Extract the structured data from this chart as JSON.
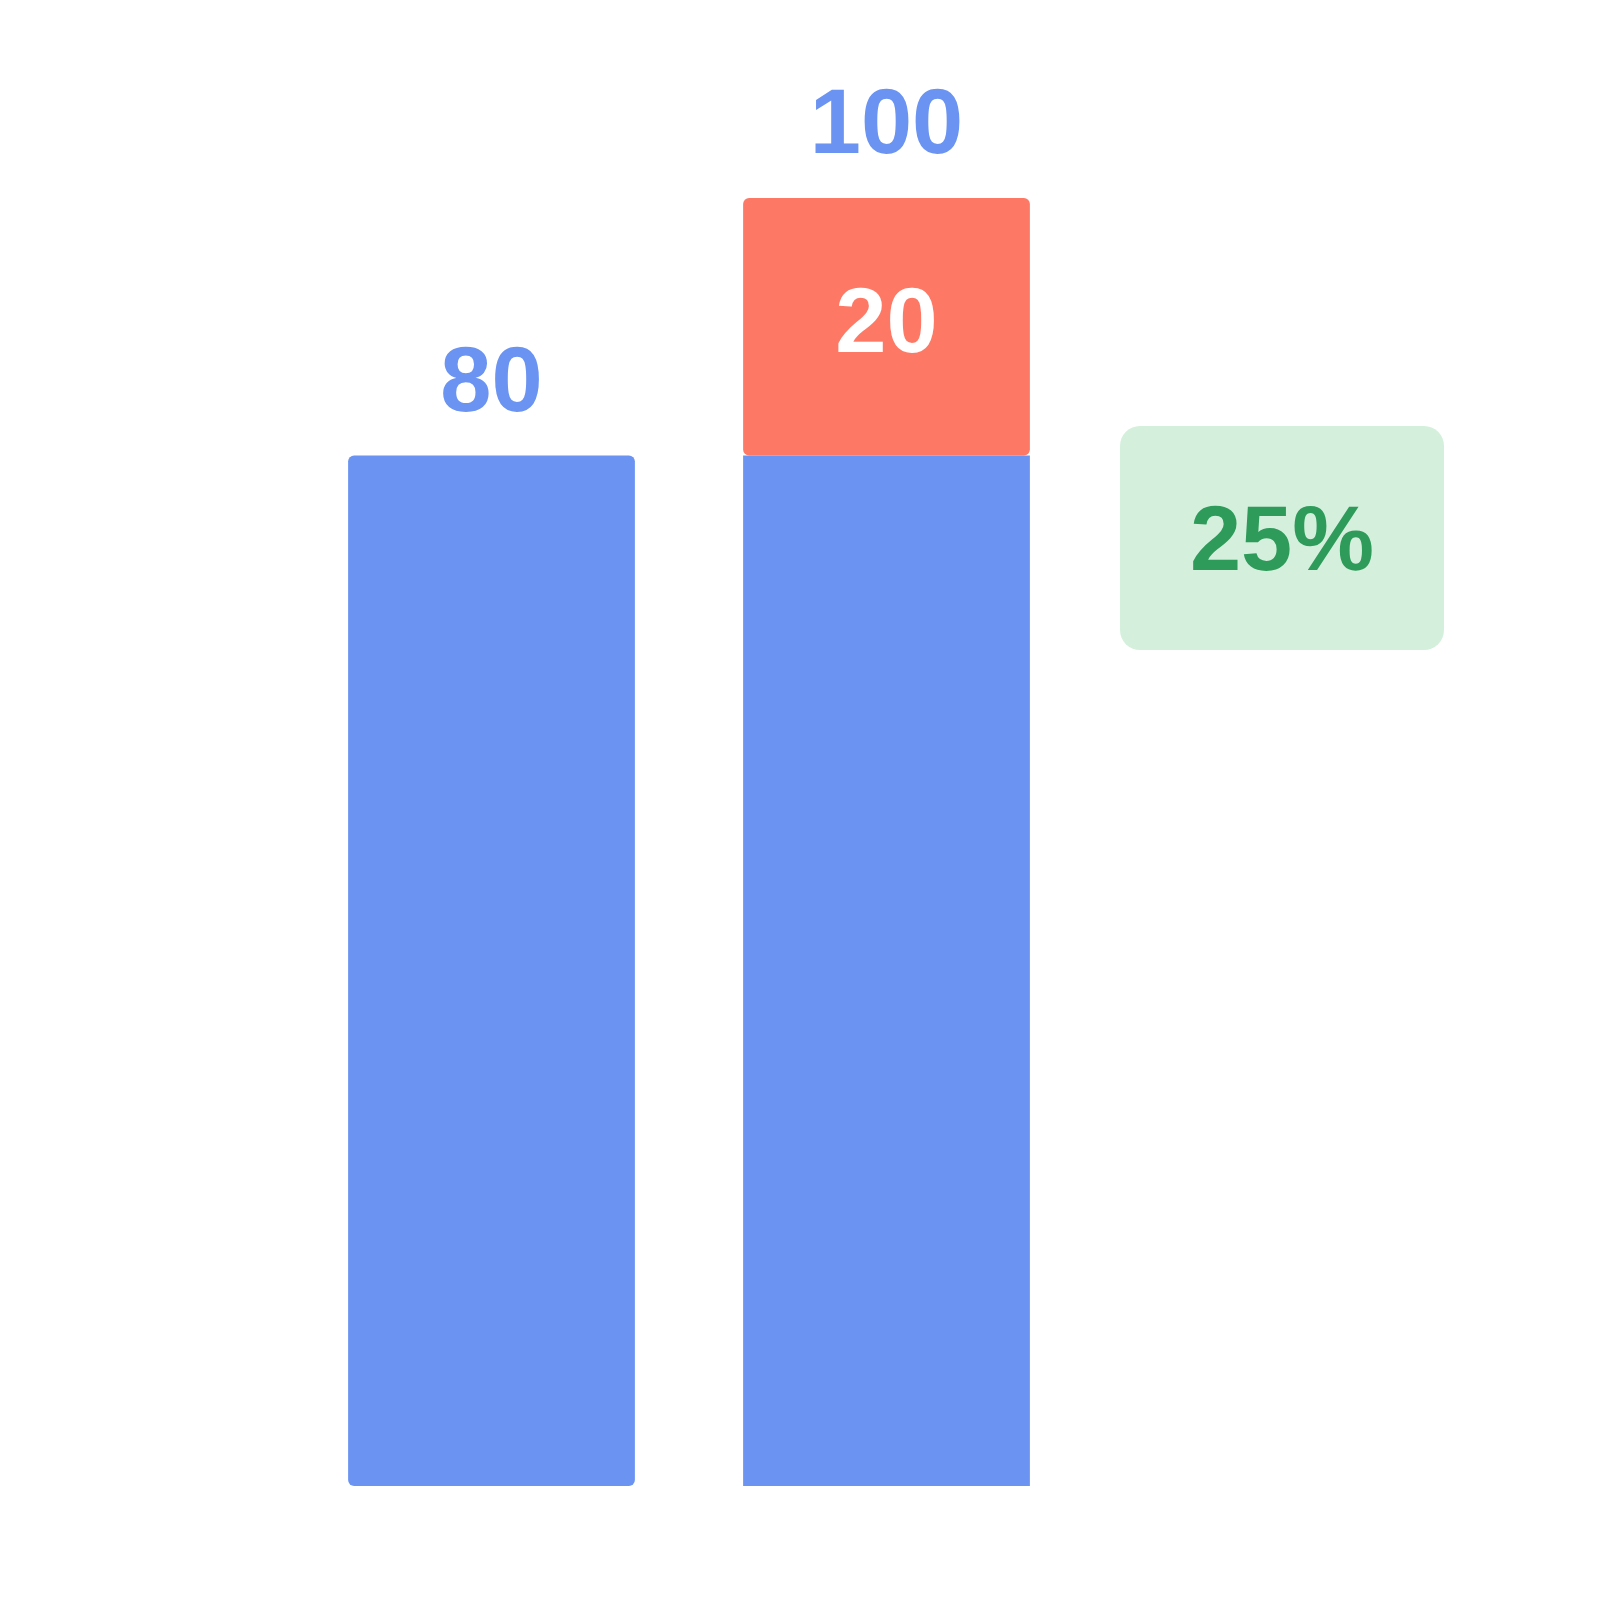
{
  "chart_data": {
    "type": "bar",
    "categories": [
      null,
      null
    ],
    "stacked": true,
    "ylim": [
      0,
      100
    ],
    "tick_labels": false,
    "series": [
      {
        "color": "#6a93f2",
        "values": [
          80,
          80
        ],
        "value_labels": [
          "80",
          null
        ]
      },
      {
        "color": "#fe7866",
        "values": [
          null,
          20
        ],
        "value_labels": [
          null,
          "20"
        ]
      }
    ],
    "totals": [
      null,
      "100"
    ],
    "annotations": [
      "25%"
    ]
  }
}
